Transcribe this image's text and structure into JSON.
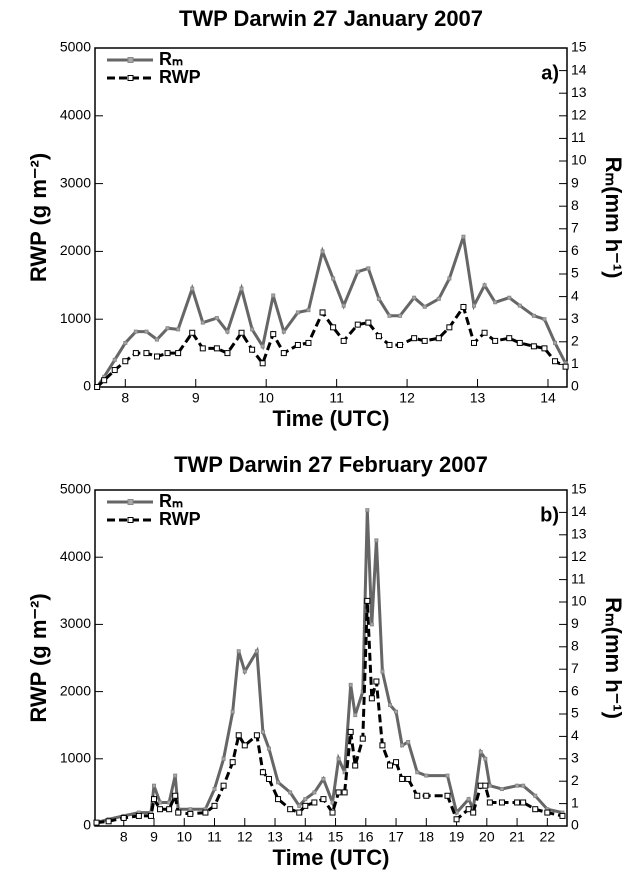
{
  "chart_data": [
    {
      "type": "line",
      "title": "TWP Darwin 27 January 2007",
      "panel_label": "a)",
      "xlabel": "Time (UTC)",
      "ylabel": "RWP (g m⁻²)",
      "y2label": "Rₘ(mm h⁻¹)",
      "x": [
        7.6,
        7.7,
        7.85,
        8.0,
        8.15,
        8.3,
        8.45,
        8.6,
        8.75,
        8.95,
        9.1,
        9.3,
        9.45,
        9.65,
        9.8,
        9.95,
        10.1,
        10.25,
        10.45,
        10.6,
        10.8,
        10.95,
        11.1,
        11.3,
        11.45,
        11.6,
        11.75,
        11.9,
        12.1,
        12.25,
        12.45,
        12.6,
        12.8,
        12.95,
        13.1,
        13.25,
        13.45,
        13.6,
        13.8,
        13.95,
        14.1,
        14.25
      ],
      "series": [
        {
          "name": "Rₘ",
          "color": "#666666",
          "axis": "y2",
          "values": [
            0,
            0.45,
            1.2,
            1.95,
            2.45,
            2.45,
            2.1,
            2.6,
            2.55,
            4.35,
            2.85,
            3.05,
            2.45,
            4.35,
            2.55,
            1.8,
            4.05,
            2.45,
            3.3,
            3.4,
            6.0,
            4.8,
            3.6,
            5.1,
            5.25,
            3.9,
            3.15,
            3.15,
            3.95,
            3.55,
            3.9,
            4.8,
            6.65,
            3.6,
            4.5,
            3.75,
            3.95,
            3.6,
            3.15,
            3.0,
            1.95,
            1.05
          ]
        },
        {
          "name": "RWP",
          "color": "#000000",
          "values": [
            0,
            100,
            250,
            380,
            500,
            500,
            450,
            500,
            500,
            800,
            570,
            570,
            500,
            800,
            550,
            350,
            780,
            500,
            620,
            650,
            1100,
            880,
            680,
            920,
            950,
            750,
            620,
            620,
            720,
            680,
            720,
            880,
            1180,
            650,
            800,
            680,
            720,
            650,
            600,
            570,
            380,
            300
          ]
        }
      ],
      "xlim": [
        7.57,
        14.27
      ],
      "xticks": [
        8,
        9,
        10,
        11,
        12,
        13,
        14
      ],
      "ylim": [
        0,
        5000
      ],
      "yticks": [
        0,
        1000,
        2000,
        3000,
        4000,
        5000
      ],
      "y2lim": [
        0,
        15
      ],
      "y2ticks": [
        0,
        1,
        2,
        3,
        4,
        5,
        6,
        7,
        8,
        9,
        10,
        11,
        12,
        13,
        14,
        15
      ],
      "legend": "upper left"
    },
    {
      "type": "line",
      "title": "TWP Darwin 27 February 2007",
      "panel_label": "b)",
      "xlabel": "Time (UTC)",
      "ylabel": "RWP (g m⁻²)",
      "y2label": "Rₘ(mm h⁻¹)",
      "x": [
        7.1,
        7.5,
        8.0,
        8.5,
        8.9,
        9.0,
        9.2,
        9.5,
        9.7,
        9.8,
        10.2,
        10.7,
        11.0,
        11.3,
        11.6,
        11.8,
        12.0,
        12.4,
        12.6,
        12.8,
        13.1,
        13.5,
        13.8,
        14.0,
        14.3,
        14.6,
        14.9,
        15.1,
        15.3,
        15.5,
        15.65,
        15.9,
        16.05,
        16.2,
        16.35,
        16.55,
        16.8,
        17.0,
        17.2,
        17.4,
        17.7,
        18.0,
        18.7,
        19.0,
        19.4,
        19.55,
        19.8,
        19.95,
        20.1,
        20.5,
        21.0,
        21.2,
        21.6,
        22.0,
        22.5
      ],
      "series": [
        {
          "name": "Rₘ",
          "color": "#666666",
          "axis": "y2",
          "values": [
            0.15,
            0.3,
            0.45,
            0.6,
            0.6,
            1.8,
            1.05,
            1.05,
            2.25,
            0.75,
            0.75,
            0.75,
            1.65,
            3.0,
            5.1,
            7.8,
            6.9,
            7.8,
            4.2,
            3.45,
            1.95,
            1.5,
            0.9,
            1.2,
            1.5,
            2.1,
            1.05,
            3.0,
            2.4,
            6.3,
            4.95,
            6.0,
            14.1,
            9.0,
            12.75,
            6.9,
            5.4,
            5.1,
            3.6,
            3.75,
            2.4,
            2.25,
            2.25,
            0.6,
            1.2,
            0.75,
            3.3,
            3.0,
            1.8,
            1.65,
            1.8,
            1.8,
            1.35,
            0.75,
            0.6
          ]
        },
        {
          "name": "RWP",
          "color": "#000000",
          "values": [
            50,
            70,
            120,
            150,
            150,
            400,
            250,
            250,
            450,
            200,
            180,
            200,
            300,
            600,
            950,
            1350,
            1200,
            1350,
            800,
            700,
            400,
            250,
            200,
            300,
            350,
            400,
            200,
            500,
            500,
            1400,
            900,
            1300,
            3350,
            1900,
            2150,
            1200,
            900,
            950,
            700,
            700,
            450,
            450,
            450,
            100,
            250,
            200,
            600,
            600,
            350,
            350,
            350,
            350,
            250,
            200,
            150
          ]
        }
      ],
      "xlim": [
        7.05,
        22.65
      ],
      "xticks": [
        8,
        9,
        10,
        11,
        12,
        13,
        14,
        15,
        16,
        17,
        18,
        19,
        20,
        21,
        22
      ],
      "ylim": [
        0,
        5000
      ],
      "yticks": [
        0,
        1000,
        2000,
        3000,
        4000,
        5000
      ],
      "y2lim": [
        0,
        15
      ],
      "y2ticks": [
        0,
        1,
        2,
        3,
        4,
        5,
        6,
        7,
        8,
        9,
        10,
        11,
        12,
        13,
        14,
        15
      ],
      "legend": "upper left"
    }
  ]
}
